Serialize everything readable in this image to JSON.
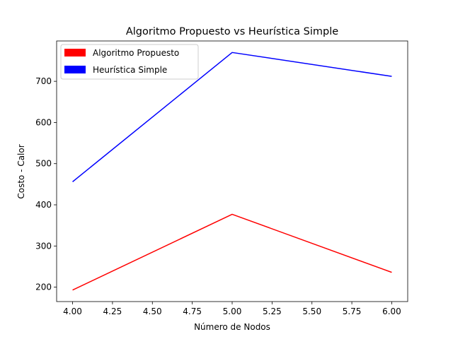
{
  "chart_data": {
    "type": "line",
    "title": "Algoritmo Propuesto vs Heurística Simple",
    "xlabel": "Número de Nodos",
    "ylabel": "Costo - Calor",
    "x": [
      4.0,
      5.0,
      6.0
    ],
    "xlim": [
      3.9,
      6.1
    ],
    "ylim": [
      165,
      798
    ],
    "xticks": [
      4.0,
      4.25,
      4.5,
      4.75,
      5.0,
      5.25,
      5.5,
      5.75,
      6.0
    ],
    "xtick_labels": [
      "4.00",
      "4.25",
      "4.50",
      "4.75",
      "5.00",
      "5.25",
      "5.50",
      "5.75",
      "6.00"
    ],
    "yticks": [
      200,
      300,
      400,
      500,
      600,
      700
    ],
    "ytick_labels": [
      "200",
      "300",
      "400",
      "500",
      "600",
      "700"
    ],
    "grid": false,
    "legend_position": "top-left",
    "series": [
      {
        "name": "Algoritmo Propuesto",
        "color": "#ff0000",
        "values": [
          193,
          377,
          236
        ]
      },
      {
        "name": "Heurística Simple",
        "color": "#0000ff",
        "values": [
          456,
          770,
          712
        ]
      }
    ]
  }
}
